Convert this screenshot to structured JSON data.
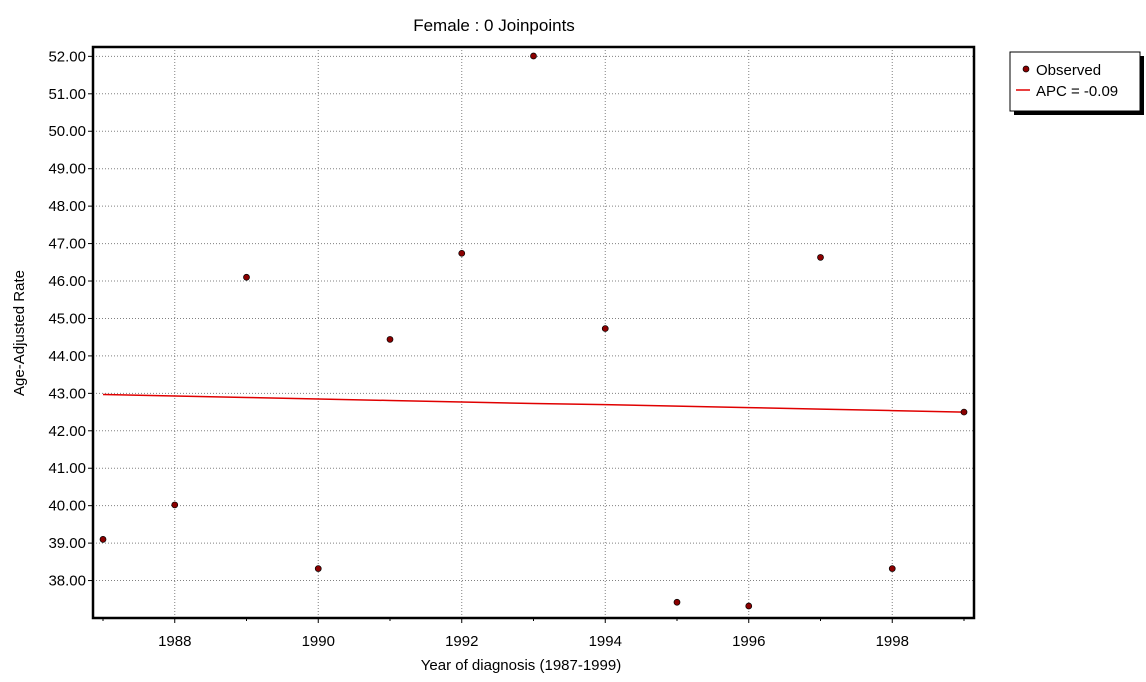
{
  "chart_data": {
    "type": "scatter",
    "title": "Female : 0 Joinpoints",
    "xlabel": "Year of diagnosis (1987-1999)",
    "ylabel": "Age-Adjusted Rate",
    "xlim": [
      1987,
      1999
    ],
    "ylim": [
      37.0,
      52.25
    ],
    "x_ticks": [
      "1988",
      "1990",
      "1992",
      "1994",
      "1996",
      "1998"
    ],
    "y_ticks": [
      "38.00",
      "39.00",
      "40.00",
      "41.00",
      "42.00",
      "43.00",
      "44.00",
      "45.00",
      "46.00",
      "47.00",
      "48.00",
      "49.00",
      "50.00",
      "51.00",
      "52.00"
    ],
    "grid": true,
    "legend_position": "top-right outside",
    "series": [
      {
        "name": "Observed",
        "kind": "points",
        "color": "#8b0000",
        "x": [
          1987,
          1988,
          1989,
          1990,
          1991,
          1992,
          1993,
          1994,
          1995,
          1996,
          1997,
          1998,
          1999
        ],
        "y": [
          39.1,
          40.02,
          46.1,
          38.32,
          44.44,
          46.74,
          52.01,
          44.73,
          37.42,
          37.32,
          46.63,
          38.32,
          42.5
        ]
      },
      {
        "name": "APC = -0.09",
        "kind": "line",
        "color": "#e00000",
        "x": [
          1987,
          1988,
          1989,
          1990,
          1991,
          1992,
          1993,
          1994,
          1995,
          1996,
          1997,
          1998,
          1999
        ],
        "y": [
          42.97,
          42.93,
          42.89,
          42.85,
          42.81,
          42.77,
          42.73,
          42.7,
          42.66,
          42.62,
          42.58,
          42.54,
          42.5
        ]
      }
    ]
  }
}
